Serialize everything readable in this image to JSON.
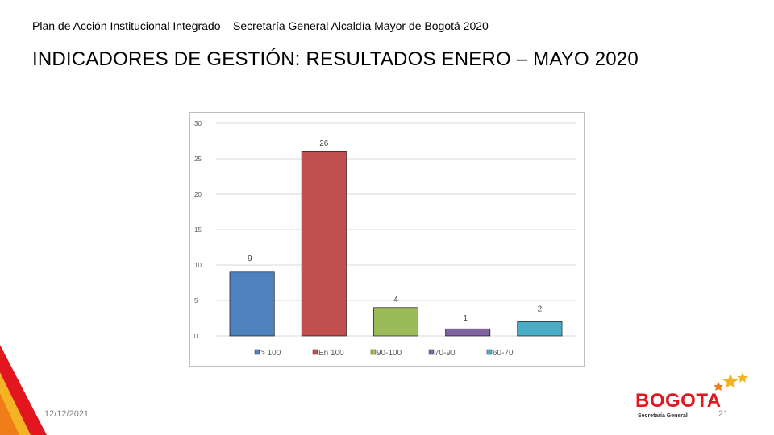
{
  "header": {
    "subtitle": "Plan de Acción Institucional Integrado – Secretaría General Alcaldía Mayor de Bogotá 2020",
    "title": "INDICADORES DE GESTIÓN: RESULTADOS ENERO – MAYO 2020"
  },
  "footer": {
    "date": "12/12/2021",
    "page_number": "21"
  },
  "logo": {
    "name": "BOGOTA",
    "subtitle": "Secretaría General"
  },
  "colors": {
    "accent_red": "#e1161f",
    "accent_yellow": "#f4b323",
    "accent_orange": "#ee7d1a"
  },
  "chart_data": {
    "type": "bar",
    "title": "",
    "xlabel": "",
    "ylabel": "",
    "ylim": [
      0,
      30
    ],
    "yticks": [
      0,
      5,
      10,
      15,
      20,
      25,
      30
    ],
    "grid": true,
    "legend": "bottom",
    "categories": [
      "> 100",
      "En 100",
      "90-100",
      "70-90",
      "60-70"
    ],
    "values": [
      9,
      26,
      4,
      1,
      2
    ],
    "colors": [
      "#4f81bd",
      "#c0504d",
      "#9bbb59",
      "#8064a2",
      "#4bacc6"
    ]
  }
}
